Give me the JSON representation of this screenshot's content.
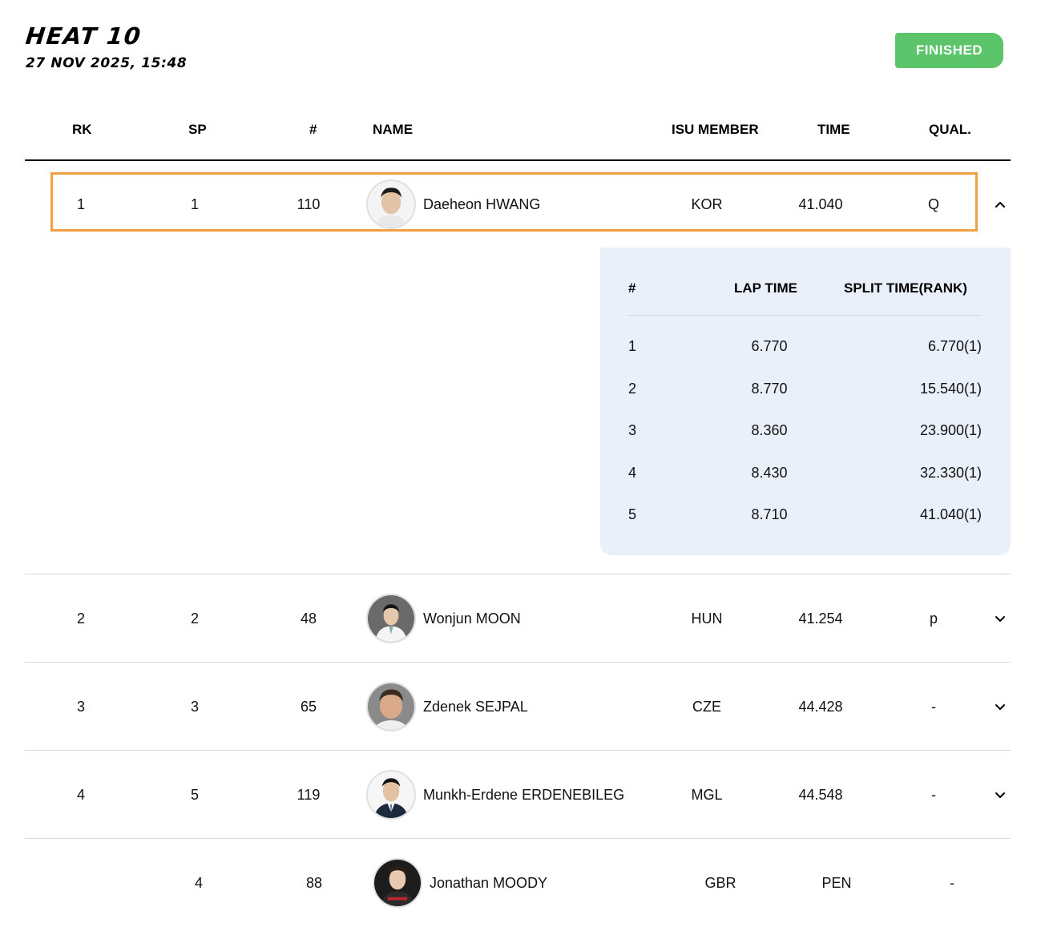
{
  "heat": {
    "title": "HEAT 10",
    "datetime": "27 NOV 2025, 15:48",
    "status": "FINISHED"
  },
  "colors": {
    "status_bg": "#5cc46a",
    "highlight_border": "#f0a040",
    "lap_panel_bg": "#eaf0f9"
  },
  "table": {
    "headers": {
      "rk": "RK",
      "sp": "SP",
      "num": "#",
      "name": "NAME",
      "member": "ISU MEMBER",
      "time": "TIME",
      "qual": "QUAL."
    },
    "rows": [
      {
        "rk": "1",
        "sp": "1",
        "num": "110",
        "name": "Daeheon HWANG",
        "member": "KOR",
        "time": "41.040",
        "qual": "Q",
        "expanded": true,
        "toggle_icon": "chevron-up-icon"
      },
      {
        "rk": "2",
        "sp": "2",
        "num": "48",
        "name": "Wonjun MOON",
        "member": "HUN",
        "time": "41.254",
        "qual": "p",
        "expanded": false,
        "toggle_icon": "chevron-down-icon"
      },
      {
        "rk": "3",
        "sp": "3",
        "num": "65",
        "name": "Zdenek SEJPAL",
        "member": "CZE",
        "time": "44.428",
        "qual": "-",
        "expanded": false,
        "toggle_icon": "chevron-down-icon"
      },
      {
        "rk": "4",
        "sp": "5",
        "num": "119",
        "name": "Munkh-Erdene ERDENEBILEG",
        "member": "MGL",
        "time": "44.548",
        "qual": "-",
        "expanded": false,
        "toggle_icon": "chevron-down-icon"
      },
      {
        "rk": "",
        "sp": "4",
        "num": "88",
        "name": "Jonathan MOODY",
        "member": "GBR",
        "time": "PEN",
        "qual": "-",
        "expanded": false,
        "toggle_icon": ""
      }
    ]
  },
  "laps": {
    "headers": {
      "num": "#",
      "lap_time": "LAP TIME",
      "split": "SPLIT TIME(RANK)"
    },
    "rows": [
      {
        "num": "1",
        "lap_time": "6.770",
        "split": "6.770(1)"
      },
      {
        "num": "2",
        "lap_time": "8.770",
        "split": "15.540(1)"
      },
      {
        "num": "3",
        "lap_time": "8.360",
        "split": "23.900(1)"
      },
      {
        "num": "4",
        "lap_time": "8.430",
        "split": "32.330(1)"
      },
      {
        "num": "5",
        "lap_time": "8.710",
        "split": "41.040(1)"
      }
    ]
  }
}
